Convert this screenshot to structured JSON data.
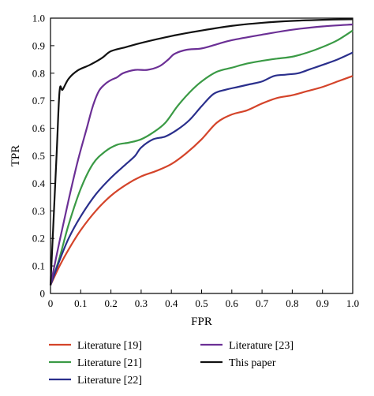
{
  "chart_data": {
    "type": "line",
    "title": "",
    "xlabel": "FPR",
    "ylabel": "TPR",
    "xlim": [
      0,
      1
    ],
    "ylim": [
      0,
      1
    ],
    "xticks": [
      "0",
      "0.1",
      "0.2",
      "0.3",
      "0.4",
      "0.5",
      "0.6",
      "0.7",
      "0.8",
      "0.9",
      "1.0"
    ],
    "yticks": [
      "0",
      "0.1",
      "0.2",
      "0.3",
      "0.4",
      "0.5",
      "0.6",
      "0.7",
      "0.8",
      "0.9",
      "1.0"
    ],
    "grid": false,
    "legend_position": "bottom",
    "series": [
      {
        "name": "Literature [19]",
        "color": "#d4442a",
        "points": [
          [
            0,
            0.03
          ],
          [
            0.03,
            0.1
          ],
          [
            0.06,
            0.16
          ],
          [
            0.1,
            0.23
          ],
          [
            0.15,
            0.3
          ],
          [
            0.2,
            0.355
          ],
          [
            0.25,
            0.395
          ],
          [
            0.3,
            0.425
          ],
          [
            0.35,
            0.445
          ],
          [
            0.4,
            0.47
          ],
          [
            0.45,
            0.51
          ],
          [
            0.5,
            0.56
          ],
          [
            0.55,
            0.62
          ],
          [
            0.6,
            0.65
          ],
          [
            0.65,
            0.665
          ],
          [
            0.7,
            0.69
          ],
          [
            0.75,
            0.71
          ],
          [
            0.8,
            0.72
          ],
          [
            0.85,
            0.735
          ],
          [
            0.9,
            0.75
          ],
          [
            0.95,
            0.77
          ],
          [
            1.0,
            0.79
          ]
        ]
      },
      {
        "name": "Literature [21]",
        "color": "#3a9a45",
        "points": [
          [
            0,
            0.03
          ],
          [
            0.03,
            0.13
          ],
          [
            0.06,
            0.25
          ],
          [
            0.1,
            0.38
          ],
          [
            0.14,
            0.47
          ],
          [
            0.18,
            0.515
          ],
          [
            0.22,
            0.54
          ],
          [
            0.26,
            0.548
          ],
          [
            0.3,
            0.56
          ],
          [
            0.34,
            0.585
          ],
          [
            0.38,
            0.62
          ],
          [
            0.42,
            0.68
          ],
          [
            0.46,
            0.73
          ],
          [
            0.5,
            0.77
          ],
          [
            0.55,
            0.805
          ],
          [
            0.6,
            0.82
          ],
          [
            0.65,
            0.835
          ],
          [
            0.7,
            0.845
          ],
          [
            0.75,
            0.853
          ],
          [
            0.8,
            0.86
          ],
          [
            0.85,
            0.875
          ],
          [
            0.9,
            0.895
          ],
          [
            0.95,
            0.92
          ],
          [
            1.0,
            0.955
          ]
        ]
      },
      {
        "name": "Literature [22]",
        "color": "#2a2f8c",
        "points": [
          [
            0,
            0.03
          ],
          [
            0.03,
            0.12
          ],
          [
            0.06,
            0.2
          ],
          [
            0.1,
            0.28
          ],
          [
            0.15,
            0.36
          ],
          [
            0.2,
            0.42
          ],
          [
            0.25,
            0.47
          ],
          [
            0.28,
            0.5
          ],
          [
            0.3,
            0.53
          ],
          [
            0.34,
            0.56
          ],
          [
            0.38,
            0.57
          ],
          [
            0.42,
            0.595
          ],
          [
            0.46,
            0.63
          ],
          [
            0.5,
            0.68
          ],
          [
            0.54,
            0.725
          ],
          [
            0.58,
            0.74
          ],
          [
            0.62,
            0.75
          ],
          [
            0.66,
            0.76
          ],
          [
            0.7,
            0.77
          ],
          [
            0.74,
            0.79
          ],
          [
            0.78,
            0.795
          ],
          [
            0.82,
            0.8
          ],
          [
            0.86,
            0.815
          ],
          [
            0.9,
            0.83
          ],
          [
            0.95,
            0.85
          ],
          [
            1.0,
            0.875
          ]
        ]
      },
      {
        "name": "Literature [23]",
        "color": "#6b2f95",
        "points": [
          [
            0,
            0.03
          ],
          [
            0.03,
            0.19
          ],
          [
            0.06,
            0.34
          ],
          [
            0.09,
            0.48
          ],
          [
            0.12,
            0.6
          ],
          [
            0.14,
            0.68
          ],
          [
            0.16,
            0.735
          ],
          [
            0.18,
            0.76
          ],
          [
            0.2,
            0.775
          ],
          [
            0.22,
            0.785
          ],
          [
            0.24,
            0.8
          ],
          [
            0.28,
            0.812
          ],
          [
            0.32,
            0.812
          ],
          [
            0.36,
            0.825
          ],
          [
            0.39,
            0.85
          ],
          [
            0.41,
            0.87
          ],
          [
            0.45,
            0.885
          ],
          [
            0.5,
            0.89
          ],
          [
            0.55,
            0.905
          ],
          [
            0.6,
            0.92
          ],
          [
            0.7,
            0.94
          ],
          [
            0.8,
            0.958
          ],
          [
            0.9,
            0.97
          ],
          [
            1.0,
            0.977
          ]
        ]
      },
      {
        "name": "This paper",
        "color": "#111111",
        "points": [
          [
            0,
            0.03
          ],
          [
            0.02,
            0.5
          ],
          [
            0.03,
            0.735
          ],
          [
            0.04,
            0.74
          ],
          [
            0.06,
            0.78
          ],
          [
            0.09,
            0.81
          ],
          [
            0.13,
            0.83
          ],
          [
            0.17,
            0.855
          ],
          [
            0.2,
            0.88
          ],
          [
            0.25,
            0.895
          ],
          [
            0.3,
            0.91
          ],
          [
            0.4,
            0.935
          ],
          [
            0.5,
            0.955
          ],
          [
            0.6,
            0.972
          ],
          [
            0.7,
            0.983
          ],
          [
            0.8,
            0.99
          ],
          [
            0.9,
            0.994
          ],
          [
            1.0,
            0.996
          ]
        ]
      }
    ]
  }
}
